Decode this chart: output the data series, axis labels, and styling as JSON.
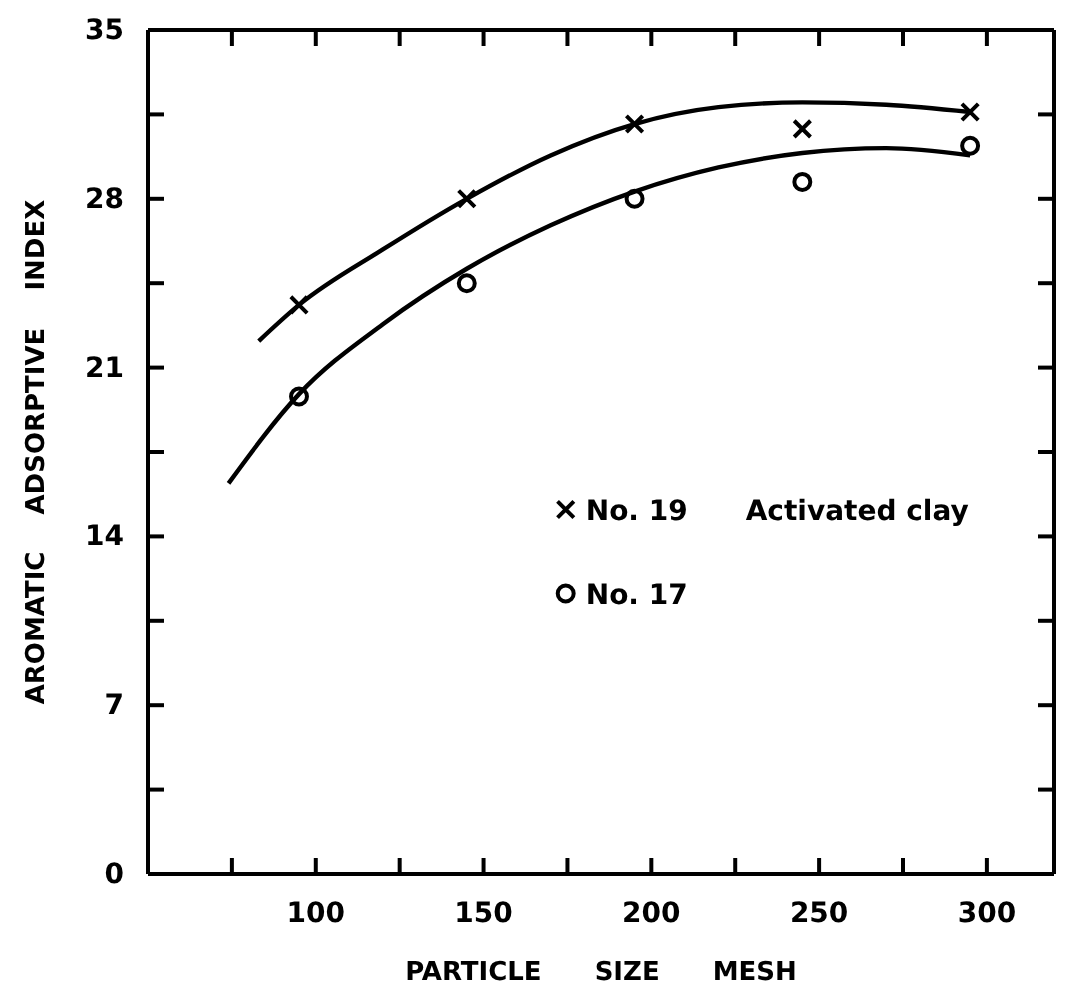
{
  "chart_data": {
    "type": "scatter",
    "xlabel": "PARTICLE SIZE MESH",
    "ylabel": "AROMATIC ADSORPTIVE INDEX",
    "xlim": [
      50,
      320
    ],
    "ylim": [
      0,
      35
    ],
    "xticks": [
      {
        "value": 75,
        "label": null
      },
      100,
      {
        "value": 125,
        "label": null
      },
      150,
      {
        "value": 175,
        "label": null
      },
      200,
      {
        "value": 225,
        "label": null
      },
      250,
      {
        "value": 275,
        "label": null
      },
      300
    ],
    "yticks": [
      0,
      {
        "value": 3.5,
        "label": null
      },
      7,
      {
        "value": 10.5,
        "label": null
      },
      14,
      {
        "value": 17.5,
        "label": null
      },
      21,
      {
        "value": 24.5,
        "label": null
      },
      28,
      {
        "value": 31.5,
        "label": null
      },
      35
    ],
    "legend": "right",
    "annotations": [
      "Activated clay"
    ],
    "series": [
      {
        "name": "No. 19",
        "color": "#000000",
        "marker": "cross",
        "x": [
          95,
          145,
          195,
          245,
          295
        ],
        "values": [
          23.6,
          28.0,
          31.1,
          30.9,
          31.6
        ]
      },
      {
        "name": "No. 17",
        "color": "#000000",
        "marker": "circle",
        "x": [
          95,
          145,
          195,
          245,
          295
        ],
        "values": [
          19.8,
          24.5,
          28.0,
          28.7,
          30.2
        ]
      },
      {
        "type": "line",
        "color": "#000000",
        "marker": "none",
        "x": [
          83,
          95,
          120,
          145,
          170,
          195,
          220,
          245,
          270,
          295
        ],
        "values": [
          22.1,
          23.6,
          25.9,
          28.0,
          29.8,
          31.1,
          31.8,
          32.0,
          31.9,
          31.6
        ]
      },
      {
        "type": "line",
        "color": "#000000",
        "marker": "none",
        "x": [
          74,
          95,
          120,
          145,
          170,
          195,
          220,
          245,
          270,
          295
        ],
        "values": [
          16.2,
          19.9,
          22.8,
          25.1,
          26.9,
          28.3,
          29.3,
          29.9,
          30.1,
          29.8
        ]
      }
    ]
  }
}
